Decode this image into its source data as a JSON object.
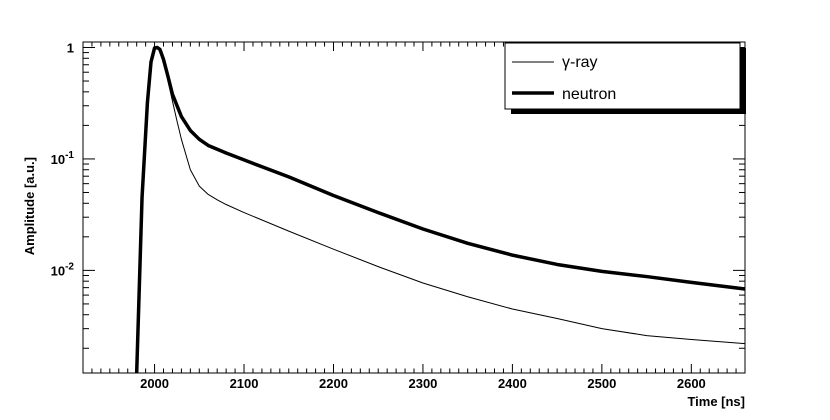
{
  "chart_data": {
    "type": "line",
    "title": "",
    "xlabel": "Time [ns]",
    "ylabel": "Amplitude [a.u.]",
    "xlim": [
      1920,
      2660
    ],
    "ylim": [
      0.0012,
      1.12
    ],
    "yscale": "log",
    "grid": false,
    "legend_position": "top-right",
    "x_ticks": [
      {
        "value": 2000,
        "label": "2000"
      },
      {
        "value": 2100,
        "label": "2100"
      },
      {
        "value": 2200,
        "label": "2200"
      },
      {
        "value": 2300,
        "label": "2300"
      },
      {
        "value": 2400,
        "label": "2400"
      },
      {
        "value": 2500,
        "label": "2500"
      },
      {
        "value": 2600,
        "label": "2600"
      }
    ],
    "y_ticks": [
      {
        "value": 1,
        "base": "1",
        "exp": ""
      },
      {
        "value": 0.1,
        "base": "10",
        "exp": "-1"
      },
      {
        "value": 0.01,
        "base": "10",
        "exp": "-2"
      }
    ],
    "series": [
      {
        "name": "γ-ray",
        "color": "#000000",
        "x": [
          1980,
          1986,
          1992,
          1996,
          2000,
          2003,
          2006,
          2010,
          2015,
          2020,
          2025,
          2030,
          2040,
          2050,
          2060,
          2070,
          2080,
          2100,
          2150,
          2200,
          2250,
          2300,
          2350,
          2400,
          2450,
          2500,
          2550,
          2600,
          2660
        ],
        "y": [
          0.0012,
          0.04,
          0.3,
          0.72,
          0.98,
          1.0,
          0.95,
          0.75,
          0.5,
          0.33,
          0.22,
          0.15,
          0.08,
          0.057,
          0.048,
          0.043,
          0.039,
          0.033,
          0.0225,
          0.0155,
          0.0108,
          0.0077,
          0.0058,
          0.0045,
          0.0037,
          0.003,
          0.0026,
          0.0024,
          0.0022
        ]
      },
      {
        "name": "neutron",
        "color": "#000000",
        "x": [
          1980,
          1986,
          1992,
          1996,
          2000,
          2003,
          2006,
          2010,
          2015,
          2020,
          2030,
          2040,
          2050,
          2060,
          2080,
          2100,
          2150,
          2200,
          2250,
          2300,
          2350,
          2400,
          2450,
          2500,
          2550,
          2600,
          2660
        ],
        "y": [
          0.0012,
          0.045,
          0.32,
          0.74,
          0.99,
          1.0,
          0.96,
          0.78,
          0.55,
          0.38,
          0.24,
          0.18,
          0.15,
          0.132,
          0.113,
          0.098,
          0.069,
          0.047,
          0.033,
          0.0235,
          0.0175,
          0.0137,
          0.0113,
          0.0098,
          0.0088,
          0.0078,
          0.0068
        ]
      }
    ]
  }
}
